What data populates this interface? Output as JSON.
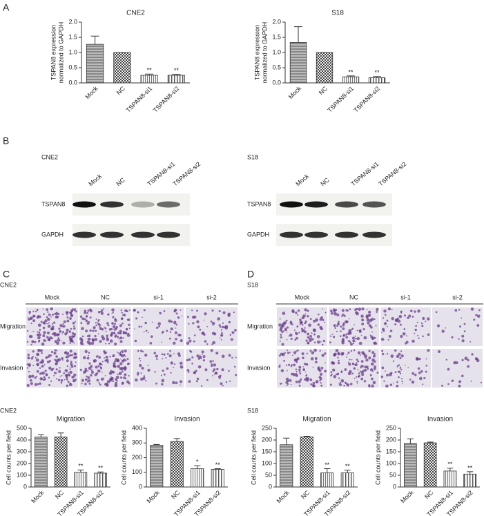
{
  "panel_letters": [
    "A",
    "B",
    "C",
    "D"
  ],
  "chart_data": [
    {
      "type": "bar",
      "title": "CNE2",
      "y_label": [
        "TSPAN8 expression",
        "normalized to GAPDH"
      ],
      "categories": [
        "Mock",
        "NC",
        "TSPAN8-si1",
        "TSPAN8-si2"
      ],
      "values": [
        1.27,
        1.0,
        0.25,
        0.25
      ],
      "errors": [
        0.27,
        0,
        0.04,
        0.03
      ],
      "significance": [
        null,
        null,
        "**",
        "**"
      ],
      "ylim": [
        0,
        2.0
      ],
      "yticks": [
        {
          "value": 0,
          "label": "0.0"
        },
        {
          "value": 0.5,
          "label": "0.5"
        },
        {
          "value": 1.0,
          "label": "1.0"
        },
        {
          "value": 1.5,
          "label": "1.5"
        },
        {
          "value": 2.0,
          "label": "2.0"
        }
      ]
    },
    {
      "type": "bar",
      "title": "S18",
      "y_label": [
        "TSPAN8 expression",
        "normalized to GAPDH"
      ],
      "categories": [
        "Mock",
        "NC",
        "TSPAN8-si1",
        "TSPAN8-si2"
      ],
      "values": [
        1.33,
        1.0,
        0.2,
        0.17
      ],
      "errors": [
        0.52,
        0,
        0.03,
        0.04
      ],
      "significance": [
        null,
        null,
        "**",
        "**"
      ],
      "ylim": [
        0,
        2.0
      ],
      "yticks": [
        {
          "value": 0,
          "label": "0.0"
        },
        {
          "value": 0.5,
          "label": "0.5"
        },
        {
          "value": 1.0,
          "label": "1.0"
        },
        {
          "value": 1.5,
          "label": "1.5"
        },
        {
          "value": 2.0,
          "label": "2.0"
        }
      ]
    },
    {
      "type": "bar",
      "title": "Migration",
      "y_label": [
        "Cell counts per field"
      ],
      "categories": [
        "Mock",
        "NC",
        "TSPAN8-si1",
        "TSPAN8-si2"
      ],
      "values": [
        425,
        425,
        125,
        118
      ],
      "errors": [
        20,
        35,
        20,
        10
      ],
      "significance": [
        null,
        null,
        "**",
        "**"
      ],
      "ylim": [
        0,
        500
      ],
      "yticks": [
        0,
        100,
        200,
        300,
        400,
        500
      ]
    },
    {
      "type": "bar",
      "title": "Invasion",
      "y_label": [
        "Cell counts per field"
      ],
      "categories": [
        "Mock",
        "NC",
        "TSPAN8-si1",
        "TSPAN8-si2"
      ],
      "values": [
        285,
        310,
        125,
        120
      ],
      "errors": [
        5,
        20,
        20,
        5
      ],
      "significance": [
        null,
        null,
        "*",
        "**"
      ],
      "ylim": [
        0,
        400
      ],
      "yticks": [
        0,
        100,
        200,
        300,
        400
      ]
    },
    {
      "type": "bar",
      "title": "Migration",
      "y_label": [
        "Cell counts per field"
      ],
      "categories": [
        "Mock",
        "NC",
        "TSPAN8-si1",
        "TSPAN8-si2"
      ],
      "values": [
        180,
        213,
        60,
        60
      ],
      "errors": [
        28,
        3,
        18,
        12
      ],
      "significance": [
        null,
        null,
        "**",
        "**"
      ],
      "ylim": [
        0,
        250
      ],
      "yticks": [
        0,
        50,
        100,
        150,
        200,
        250
      ]
    },
    {
      "type": "bar",
      "title": "Invasion",
      "y_label": [
        "Cell counts per field"
      ],
      "categories": [
        "Mock",
        "NC",
        "TSPAN8-si1",
        "TSPAN8-si2"
      ],
      "values": [
        185,
        188,
        68,
        55
      ],
      "errors": [
        20,
        3,
        12,
        10
      ],
      "significance": [
        null,
        null,
        "**",
        "**"
      ],
      "ylim": [
        0,
        250
      ],
      "yticks": [
        0,
        50,
        100,
        150,
        200,
        250
      ]
    }
  ],
  "blots": [
    {
      "title": "CNE2",
      "lanes": [
        "Mock",
        "NC",
        "TSPAN8-si1",
        "TSPAN8-si2"
      ],
      "rows": [
        "TSPAN8",
        "GAPDH"
      ]
    },
    {
      "title": "S18",
      "lanes": [
        "Mock",
        "NC",
        "TSPAN8-si1",
        "TSPAN8-si2"
      ],
      "rows": [
        "TSPAN8",
        "GAPDH"
      ]
    }
  ],
  "micrographs": [
    {
      "title": "CNE2",
      "columns": [
        "Mock",
        "NC",
        "si-1",
        "si-2"
      ],
      "rows": [
        "Migration",
        "Invasion"
      ]
    },
    {
      "title": "S18",
      "columns": [
        "Mock",
        "NC",
        "si-1",
        "si-2"
      ],
      "rows": [
        "Migration",
        "Invasion"
      ]
    }
  ],
  "quantification_groups": [
    "CNE2",
    "S18"
  ]
}
